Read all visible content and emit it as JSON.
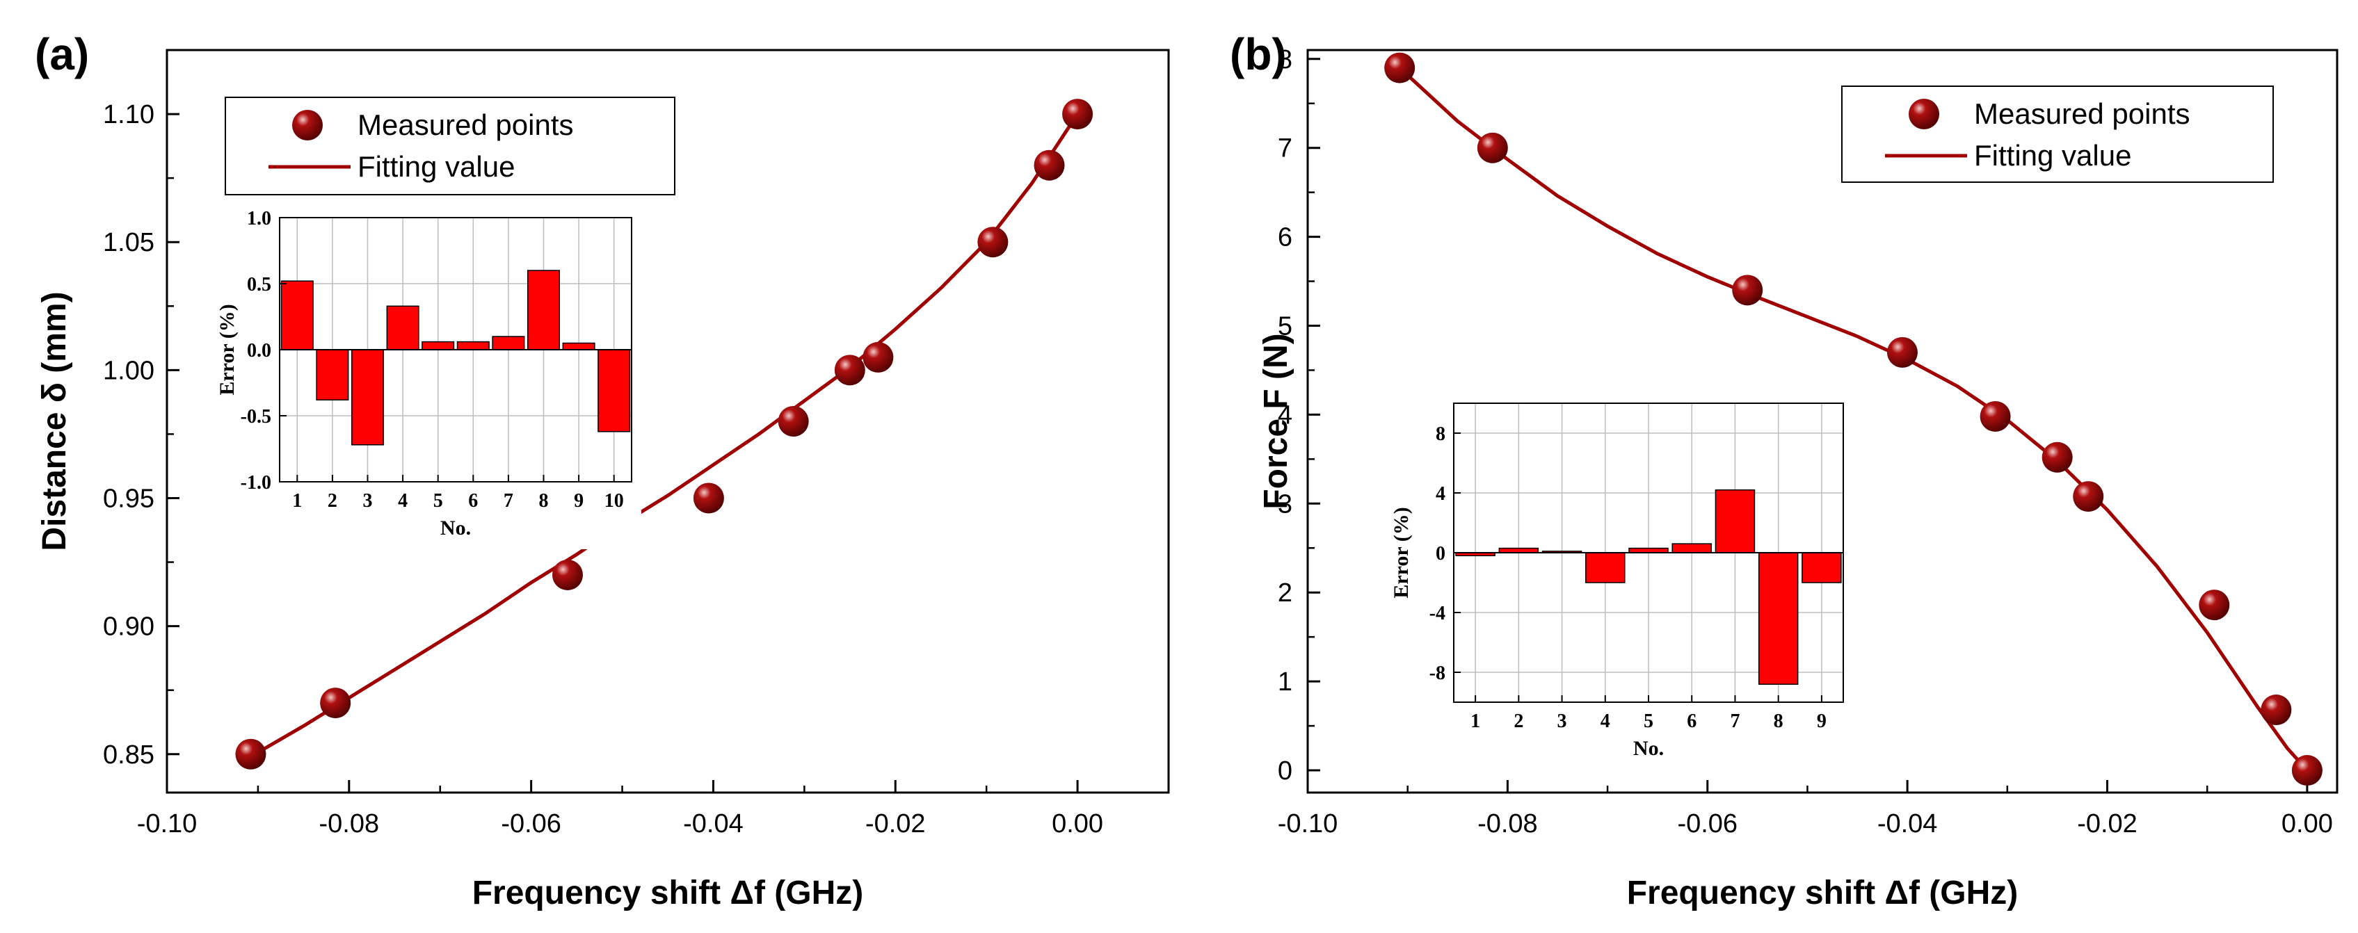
{
  "colors": {
    "marker": "#8b0000",
    "line": "#a00000",
    "bar": "#ff0000"
  },
  "chart_data": [
    {
      "id": "a",
      "panel_label": "(a)",
      "type": "scatter+line",
      "xlabel": "Frequency shift Δf (GHz)",
      "ylabel": "Distance δ (mm)",
      "xlim": [
        -0.1,
        0.01
      ],
      "ylim": [
        0.835,
        1.125
      ],
      "xticks": [
        -0.1,
        -0.08,
        -0.06,
        -0.04,
        -0.02,
        0.0
      ],
      "xtick_labels": [
        "-0.10",
        "-0.08",
        "-0.06",
        "-0.04",
        "-0.02",
        "0.00"
      ],
      "yticks": [
        0.85,
        0.9,
        0.95,
        1.0,
        1.05,
        1.1
      ],
      "ytick_labels": [
        "0.85",
        "0.90",
        "0.95",
        "1.00",
        "1.05",
        "1.10"
      ],
      "legend": {
        "position": "top-left",
        "entries": [
          "Measured points",
          "Fitting value"
        ]
      },
      "series": [
        {
          "name": "Measured points",
          "kind": "scatter",
          "x": [
            -0.0908,
            -0.0815,
            -0.056,
            -0.0405,
            -0.0312,
            -0.025,
            -0.0219,
            -0.0093,
            -0.0031,
            0.0
          ],
          "y": [
            0.85,
            0.87,
            0.92,
            0.95,
            0.98,
            1.0,
            1.005,
            1.05,
            1.08,
            1.1
          ]
        },
        {
          "name": "Fitting value",
          "kind": "line",
          "x": [
            -0.0908,
            -0.085,
            -0.08,
            -0.075,
            -0.07,
            -0.065,
            -0.06,
            -0.055,
            -0.05,
            -0.045,
            -0.04,
            -0.035,
            -0.03,
            -0.025,
            -0.02,
            -0.015,
            -0.01,
            -0.005,
            0.0
          ],
          "y": [
            0.849,
            0.861,
            0.872,
            0.883,
            0.894,
            0.905,
            0.917,
            0.928,
            0.94,
            0.951,
            0.963,
            0.975,
            0.988,
            1.001,
            1.016,
            1.032,
            1.05,
            1.073,
            1.1
          ]
        }
      ],
      "inset": {
        "type": "bar",
        "xlabel": "No.",
        "ylabel": "Error (%)",
        "ylim": [
          -1.0,
          1.0
        ],
        "yticks": [
          -1.0,
          -0.5,
          0.0,
          0.5,
          1.0
        ],
        "ytick_labels": [
          "-1.0",
          "-0.5",
          "0.0",
          "0.5",
          "1.0"
        ],
        "categories": [
          "1",
          "2",
          "3",
          "4",
          "5",
          "6",
          "7",
          "8",
          "9",
          "10"
        ],
        "values": [
          0.52,
          -0.38,
          -0.72,
          0.33,
          0.06,
          0.06,
          0.1,
          0.6,
          0.05,
          -0.62
        ]
      }
    },
    {
      "id": "b",
      "panel_label": "(b)",
      "type": "scatter+line",
      "xlabel": "Frequency shift Δf (GHz)",
      "ylabel": "Force F (N)",
      "xlim": [
        -0.1,
        0.003
      ],
      "ylim": [
        -0.25,
        8.1
      ],
      "xticks": [
        -0.1,
        -0.08,
        -0.06,
        -0.04,
        -0.02,
        0.0
      ],
      "xtick_labels": [
        "-0.10",
        "-0.08",
        "-0.06",
        "-0.04",
        "-0.02",
        "0.00"
      ],
      "yticks": [
        0,
        1,
        2,
        3,
        4,
        5,
        6,
        7,
        8
      ],
      "ytick_labels": [
        "0",
        "1",
        "2",
        "3",
        "4",
        "5",
        "6",
        "7",
        "8"
      ],
      "legend": {
        "position": "top-right",
        "entries": [
          "Measured points",
          "Fitting value"
        ]
      },
      "series": [
        {
          "name": "Measured points",
          "kind": "scatter",
          "x": [
            -0.0908,
            -0.0815,
            -0.056,
            -0.0405,
            -0.0312,
            -0.025,
            -0.0219,
            -0.0093,
            -0.0031,
            0.0
          ],
          "y": [
            7.9,
            7.0,
            5.4,
            4.7,
            3.98,
            3.52,
            3.08,
            1.86,
            0.68,
            0.0
          ]
        },
        {
          "name": "Fitting value",
          "kind": "line",
          "x": [
            -0.0908,
            -0.085,
            -0.08,
            -0.075,
            -0.07,
            -0.065,
            -0.06,
            -0.055,
            -0.05,
            -0.045,
            -0.04,
            -0.035,
            -0.03,
            -0.025,
            -0.02,
            -0.015,
            -0.01,
            -0.005,
            -0.002,
            0.0
          ],
          "y": [
            7.9,
            7.3,
            6.87,
            6.46,
            6.12,
            5.81,
            5.55,
            5.32,
            5.1,
            4.88,
            4.62,
            4.32,
            3.94,
            3.48,
            2.93,
            2.29,
            1.55,
            0.72,
            0.25,
            0.0
          ]
        }
      ],
      "inset": {
        "type": "bar",
        "xlabel": "No.",
        "ylabel": "Error (%)",
        "ylim": [
          -10,
          10
        ],
        "yticks": [
          -8,
          -4,
          0,
          4,
          8
        ],
        "ytick_labels": [
          "-8",
          "-4",
          "0",
          "4",
          "8"
        ],
        "categories": [
          "1",
          "2",
          "3",
          "4",
          "5",
          "6",
          "7",
          "8",
          "9"
        ],
        "values": [
          -0.2,
          0.3,
          0.1,
          -2.0,
          0.3,
          0.6,
          4.2,
          -8.8,
          -2.0
        ]
      }
    }
  ]
}
